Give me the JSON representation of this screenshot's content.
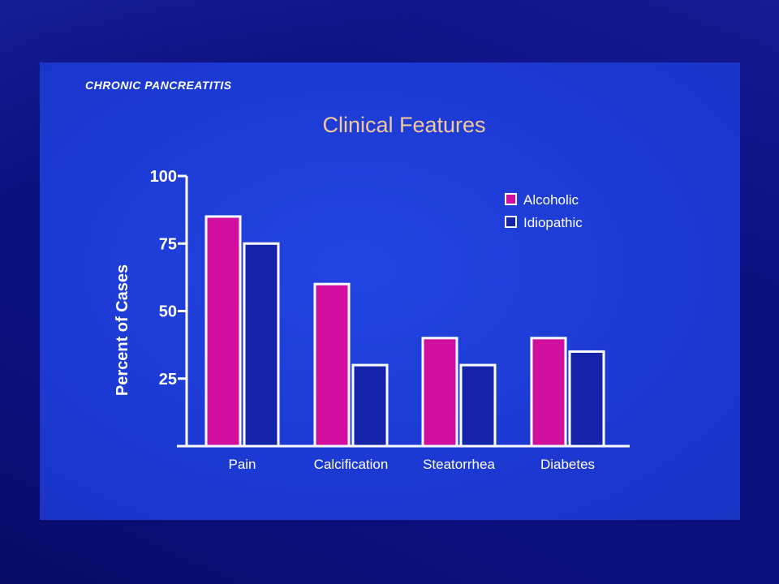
{
  "slide_header": "CHRONIC PANCREATITIS",
  "colors": {
    "page_background": "#0c0f7e",
    "slide_background": "#1d3bd8",
    "title_color": "#f2c99a",
    "text_color": "#ffffff",
    "alcoholic": "#d10f9e",
    "idiopathic": "#1523a8",
    "outline": "#ffffff"
  },
  "chart_data": {
    "type": "bar",
    "title": "Clinical Features",
    "xlabel": "",
    "ylabel": "Percent of Cases",
    "ylim": [
      0,
      100
    ],
    "yticks": [
      25,
      50,
      75,
      100
    ],
    "categories": [
      "Pain",
      "Calcification",
      "Steatorrhea",
      "Diabetes"
    ],
    "series": [
      {
        "name": "Alcoholic",
        "values": [
          85,
          60,
          40,
          40
        ]
      },
      {
        "name": "Idiopathic",
        "values": [
          75,
          30,
          30,
          35
        ]
      }
    ],
    "legend_position": "top-right",
    "grid": false
  }
}
